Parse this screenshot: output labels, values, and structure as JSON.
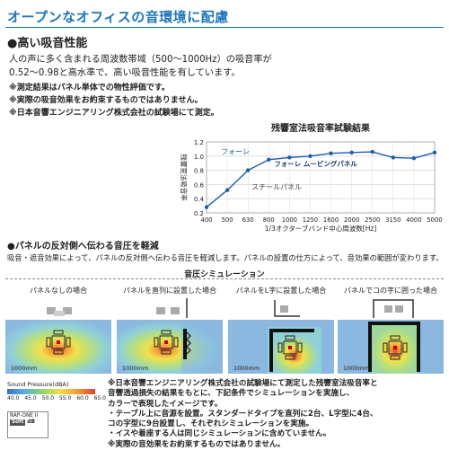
{
  "title": "オープンなオフィスの音環境に配慮",
  "section1": {
    "heading": "●高い吸音性能",
    "lines": [
      "人の声に多く含まれる周波数帯域（500〜1000Hz）の吸音率が",
      "0.52〜0.98と高水準で、高い吸音性能を有しています。"
    ],
    "notes": [
      "※測定結果はパネル単体での物性評価です。",
      "※実際の吸音効果をお約束するものではありません。",
      "※日本音響エンジニアリング株式会社の試験場にて測定。"
    ]
  },
  "chart_data": {
    "type": "line",
    "title": "残響室法吸音率試験結果",
    "xlabel": "1/3オクターブバンド中心周波数[Hz]",
    "ylabel": "残響室法吸音率",
    "categories": [
      "400",
      "500",
      "630",
      "800",
      "1000",
      "1250",
      "1600",
      "2000",
      "2500",
      "3150",
      "4000",
      "5000"
    ],
    "yticks": [
      "0.2",
      "0.4",
      "0.6",
      "0.8",
      "1.0",
      "1.2"
    ],
    "ylim": [
      0.2,
      1.2
    ],
    "grid": true,
    "series": [
      {
        "name": "フォーレ ムービングパネル",
        "values": [
          0.28,
          0.52,
          0.8,
          0.95,
          0.98,
          1.0,
          1.04,
          1.05,
          1.06,
          0.98,
          0.97,
          1.05
        ],
        "color": "#1f5fa8"
      }
    ],
    "annotations": [
      "フォーレ",
      "スチールパネル"
    ]
  },
  "section2": {
    "heading": "●パネルの反対側へ伝わる音圧を軽減",
    "desc": "吸音・遮音効果によって、パネルの反対側へ伝わる音圧を軽減します。パネルの設置の仕方によって、音効果の範囲が変わります。",
    "sim_title": "音圧シミュレーション",
    "panels": [
      {
        "label": "パネルなしの場合",
        "scale": "1000mm"
      },
      {
        "label": "パネルを直列に設置した場合",
        "scale": "1000mm"
      },
      {
        "label": "パネルをL字に設置した場合",
        "scale": "1000mm"
      },
      {
        "label": "パネルでコの字に囲った場合",
        "scale": "1000mm"
      }
    ],
    "legend": {
      "title": "Sound Pressure(dBA)",
      "ticks": [
        "40.0",
        "45.0",
        "50.0",
        "55.0",
        "60.0",
        "65.0"
      ],
      "colors": [
        "#3a6fc0",
        "#5bb0e0",
        "#8fd66a",
        "#f3e04c",
        "#f39a3a",
        "#e2442c"
      ]
    },
    "logo": {
      "line1": "RAP-ONE II",
      "soft": "Soft",
      "mark": "dB"
    }
  },
  "bottom_notes": [
    "※日本音響エンジニアリング株式会社の試験場にて測定した残響室法吸音率と",
    "  音響透過損失の結果をもとに、下記条件でシミュレーションを実施し、",
    "  カラーで表現したイメージです。",
    "・テーブル上に音源を設置。スタンダードタイプを直列に2台、L字型に4台、",
    "  コの字型に9台設置し、それぞれシミュレーションを実施。",
    "・イスや着座する人は同じシミュレーションに含めていません。",
    "※実際の音効果をお約束するものではありません。"
  ]
}
